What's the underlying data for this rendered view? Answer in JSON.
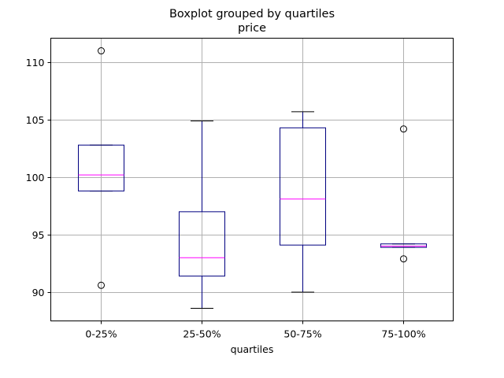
{
  "chart_data": {
    "type": "boxplot",
    "title": "Boxplot grouped by quartiles",
    "subtitle": "price",
    "xlabel": "quartiles",
    "ylabel": "",
    "ylim": [
      87.5,
      112.1
    ],
    "yticks": [
      90,
      95,
      100,
      105,
      110
    ],
    "grid": true,
    "categories": [
      "0-25%",
      "25-50%",
      "50-75%",
      "75-100%"
    ],
    "boxes": [
      {
        "whisker_low": 98.8,
        "q1": 98.8,
        "median": 100.2,
        "q3": 102.8,
        "whisker_high": 102.8,
        "outliers": [
          111.0,
          90.6
        ]
      },
      {
        "whisker_low": 88.6,
        "q1": 91.4,
        "median": 93.0,
        "q3": 97.0,
        "whisker_high": 104.9,
        "outliers": []
      },
      {
        "whisker_low": 90.0,
        "q1": 94.1,
        "median": 98.1,
        "q3": 104.3,
        "whisker_high": 105.7,
        "outliers": []
      },
      {
        "whisker_low": 93.9,
        "q1": 93.9,
        "median": 94.0,
        "q3": 94.2,
        "whisker_high": 94.2,
        "outliers": [
          104.2,
          92.9
        ]
      }
    ],
    "colors": {
      "box": "#000080",
      "median": "#ff00ff",
      "whisker": "#000080",
      "cap": "#000000",
      "outlier": "#000000",
      "grid": "#b0b0b0",
      "frame": "#000000"
    }
  }
}
